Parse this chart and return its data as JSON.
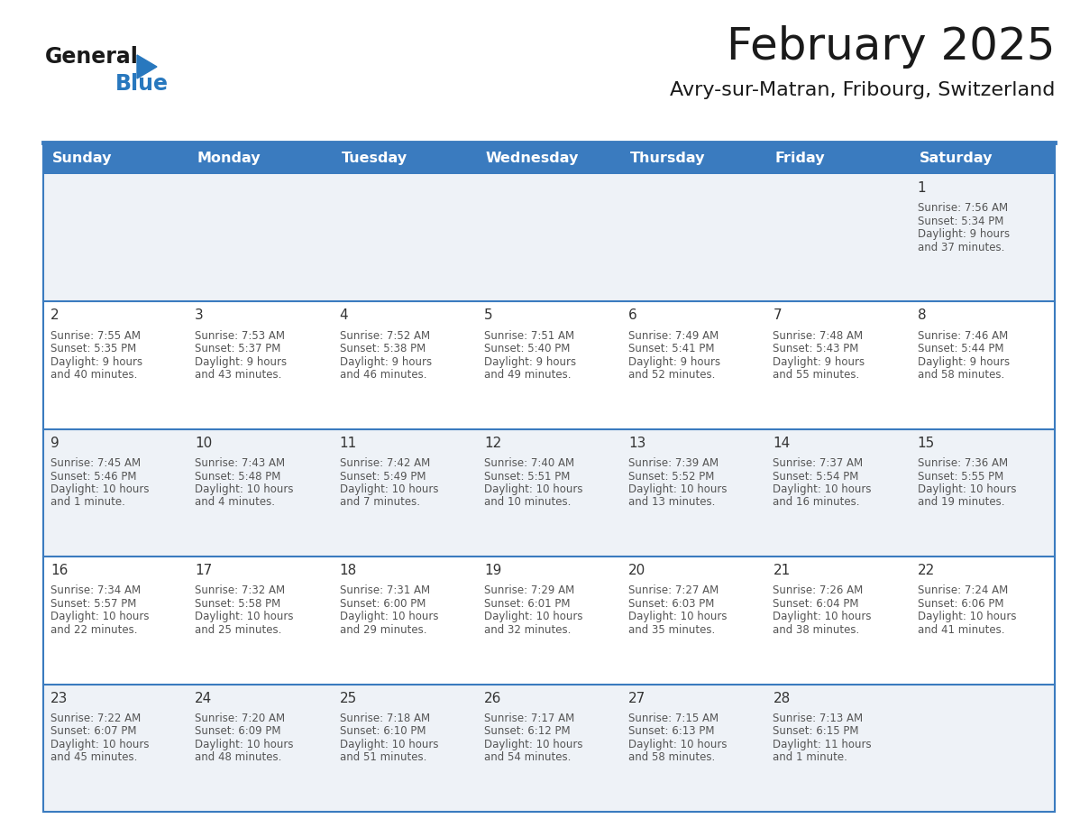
{
  "title": "February 2025",
  "subtitle": "Avry-sur-Matran, Fribourg, Switzerland",
  "days_of_week": [
    "Sunday",
    "Monday",
    "Tuesday",
    "Wednesday",
    "Thursday",
    "Friday",
    "Saturday"
  ],
  "header_bg": "#3a7bbf",
  "header_text": "#ffffff",
  "cell_bg_row0": "#eef2f7",
  "cell_bg_row1": "#ffffff",
  "cell_bg_row2": "#eef2f7",
  "cell_bg_row3": "#ffffff",
  "cell_bg_row4": "#eef2f7",
  "separator_color": "#3a7bbf",
  "text_color": "#555555",
  "day_num_color": "#333333",
  "logo_color": "#2878be",
  "calendar_data": [
    {
      "day": 1,
      "col": 6,
      "row": 0,
      "sunrise": "7:56 AM",
      "sunset": "5:34 PM",
      "daylight": "9 hours and 37 minutes."
    },
    {
      "day": 2,
      "col": 0,
      "row": 1,
      "sunrise": "7:55 AM",
      "sunset": "5:35 PM",
      "daylight": "9 hours and 40 minutes."
    },
    {
      "day": 3,
      "col": 1,
      "row": 1,
      "sunrise": "7:53 AM",
      "sunset": "5:37 PM",
      "daylight": "9 hours and 43 minutes."
    },
    {
      "day": 4,
      "col": 2,
      "row": 1,
      "sunrise": "7:52 AM",
      "sunset": "5:38 PM",
      "daylight": "9 hours and 46 minutes."
    },
    {
      "day": 5,
      "col": 3,
      "row": 1,
      "sunrise": "7:51 AM",
      "sunset": "5:40 PM",
      "daylight": "9 hours and 49 minutes."
    },
    {
      "day": 6,
      "col": 4,
      "row": 1,
      "sunrise": "7:49 AM",
      "sunset": "5:41 PM",
      "daylight": "9 hours and 52 minutes."
    },
    {
      "day": 7,
      "col": 5,
      "row": 1,
      "sunrise": "7:48 AM",
      "sunset": "5:43 PM",
      "daylight": "9 hours and 55 minutes."
    },
    {
      "day": 8,
      "col": 6,
      "row": 1,
      "sunrise": "7:46 AM",
      "sunset": "5:44 PM",
      "daylight": "9 hours and 58 minutes."
    },
    {
      "day": 9,
      "col": 0,
      "row": 2,
      "sunrise": "7:45 AM",
      "sunset": "5:46 PM",
      "daylight": "10 hours and 1 minute."
    },
    {
      "day": 10,
      "col": 1,
      "row": 2,
      "sunrise": "7:43 AM",
      "sunset": "5:48 PM",
      "daylight": "10 hours and 4 minutes."
    },
    {
      "day": 11,
      "col": 2,
      "row": 2,
      "sunrise": "7:42 AM",
      "sunset": "5:49 PM",
      "daylight": "10 hours and 7 minutes."
    },
    {
      "day": 12,
      "col": 3,
      "row": 2,
      "sunrise": "7:40 AM",
      "sunset": "5:51 PM",
      "daylight": "10 hours and 10 minutes."
    },
    {
      "day": 13,
      "col": 4,
      "row": 2,
      "sunrise": "7:39 AM",
      "sunset": "5:52 PM",
      "daylight": "10 hours and 13 minutes."
    },
    {
      "day": 14,
      "col": 5,
      "row": 2,
      "sunrise": "7:37 AM",
      "sunset": "5:54 PM",
      "daylight": "10 hours and 16 minutes."
    },
    {
      "day": 15,
      "col": 6,
      "row": 2,
      "sunrise": "7:36 AM",
      "sunset": "5:55 PM",
      "daylight": "10 hours and 19 minutes."
    },
    {
      "day": 16,
      "col": 0,
      "row": 3,
      "sunrise": "7:34 AM",
      "sunset": "5:57 PM",
      "daylight": "10 hours and 22 minutes."
    },
    {
      "day": 17,
      "col": 1,
      "row": 3,
      "sunrise": "7:32 AM",
      "sunset": "5:58 PM",
      "daylight": "10 hours and 25 minutes."
    },
    {
      "day": 18,
      "col": 2,
      "row": 3,
      "sunrise": "7:31 AM",
      "sunset": "6:00 PM",
      "daylight": "10 hours and 29 minutes."
    },
    {
      "day": 19,
      "col": 3,
      "row": 3,
      "sunrise": "7:29 AM",
      "sunset": "6:01 PM",
      "daylight": "10 hours and 32 minutes."
    },
    {
      "day": 20,
      "col": 4,
      "row": 3,
      "sunrise": "7:27 AM",
      "sunset": "6:03 PM",
      "daylight": "10 hours and 35 minutes."
    },
    {
      "day": 21,
      "col": 5,
      "row": 3,
      "sunrise": "7:26 AM",
      "sunset": "6:04 PM",
      "daylight": "10 hours and 38 minutes."
    },
    {
      "day": 22,
      "col": 6,
      "row": 3,
      "sunrise": "7:24 AM",
      "sunset": "6:06 PM",
      "daylight": "10 hours and 41 minutes."
    },
    {
      "day": 23,
      "col": 0,
      "row": 4,
      "sunrise": "7:22 AM",
      "sunset": "6:07 PM",
      "daylight": "10 hours and 45 minutes."
    },
    {
      "day": 24,
      "col": 1,
      "row": 4,
      "sunrise": "7:20 AM",
      "sunset": "6:09 PM",
      "daylight": "10 hours and 48 minutes."
    },
    {
      "day": 25,
      "col": 2,
      "row": 4,
      "sunrise": "7:18 AM",
      "sunset": "6:10 PM",
      "daylight": "10 hours and 51 minutes."
    },
    {
      "day": 26,
      "col": 3,
      "row": 4,
      "sunrise": "7:17 AM",
      "sunset": "6:12 PM",
      "daylight": "10 hours and 54 minutes."
    },
    {
      "day": 27,
      "col": 4,
      "row": 4,
      "sunrise": "7:15 AM",
      "sunset": "6:13 PM",
      "daylight": "10 hours and 58 minutes."
    },
    {
      "day": 28,
      "col": 5,
      "row": 4,
      "sunrise": "7:13 AM",
      "sunset": "6:15 PM",
      "daylight": "11 hours and 1 minute."
    }
  ]
}
